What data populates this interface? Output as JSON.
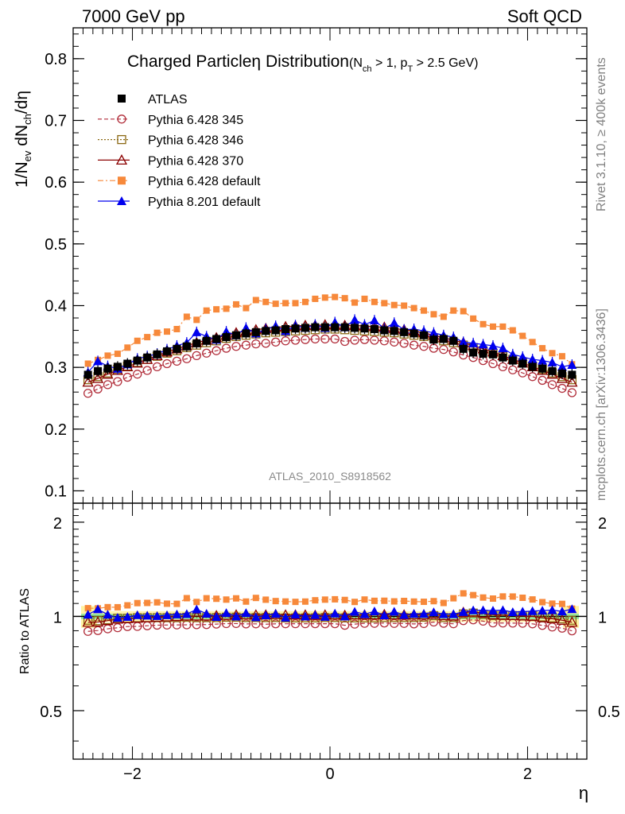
{
  "header": {
    "energy_label": "7000 GeV pp",
    "process_label": "Soft QCD"
  },
  "side_labels": {
    "rivet": "Rivet 3.1.10, ≥ 400k events",
    "mcplots": "mcplots.cern.ch [arXiv:1306.3436]"
  },
  "chart_data": [
    {
      "type": "scatter",
      "panel": "main",
      "title_main": "Charged Particle",
      "title_eta": "η",
      "title_rest": " Distribution",
      "title_cut": {
        "open": "(N",
        "sub1": "ch",
        "mid": " > 1, p",
        "sub2": "T",
        "close": " > 2.5 GeV)"
      },
      "ylabel": {
        "a": "1/N",
        "sub1": "ev",
        "b": " dN",
        "sub2": "ch",
        "c": "/dη"
      },
      "xlabel": "η",
      "xlim": [
        -2.6,
        2.6
      ],
      "ylim": [
        0.08,
        0.85
      ],
      "yticks": [
        {
          "v": 0.1,
          "label": "0.1"
        },
        {
          "v": 0.2,
          "label": "0.2"
        },
        {
          "v": 0.3,
          "label": "0.3"
        },
        {
          "v": 0.4,
          "label": "0.4"
        },
        {
          "v": 0.5,
          "label": "0.5"
        },
        {
          "v": 0.6,
          "label": "0.6"
        },
        {
          "v": 0.7,
          "label": "0.7"
        },
        {
          "v": 0.8,
          "label": "0.8"
        }
      ],
      "watermark": "ATLAS_2010_S8918562",
      "x": [
        -2.45,
        -2.35,
        -2.25,
        -2.15,
        -2.05,
        -1.95,
        -1.85,
        -1.75,
        -1.65,
        -1.55,
        -1.45,
        -1.35,
        -1.25,
        -1.15,
        -1.05,
        -0.95,
        -0.85,
        -0.75,
        -0.65,
        -0.55,
        -0.45,
        -0.35,
        -0.25,
        -0.15,
        -0.05,
        0.05,
        0.15,
        0.25,
        0.35,
        0.45,
        0.55,
        0.65,
        0.75,
        0.85,
        0.95,
        1.05,
        1.15,
        1.25,
        1.35,
        1.45,
        1.55,
        1.65,
        1.75,
        1.85,
        1.95,
        2.05,
        2.15,
        2.25,
        2.35,
        2.45
      ],
      "series": [
        {
          "name": "ATLAS",
          "key": "atlas",
          "color": "#000000",
          "marker": "square-filled",
          "line": "none",
          "values": [
            0.288,
            0.294,
            0.298,
            0.301,
            0.306,
            0.311,
            0.316,
            0.321,
            0.326,
            0.33,
            0.334,
            0.339,
            0.343,
            0.346,
            0.349,
            0.352,
            0.355,
            0.357,
            0.359,
            0.36,
            0.362,
            0.363,
            0.364,
            0.365,
            0.365,
            0.365,
            0.365,
            0.364,
            0.363,
            0.362,
            0.36,
            0.359,
            0.357,
            0.355,
            0.352,
            0.345,
            0.346,
            0.343,
            0.33,
            0.324,
            0.322,
            0.321,
            0.316,
            0.311,
            0.306,
            0.301,
            0.298,
            0.294,
            0.29,
            0.288
          ]
        },
        {
          "name": "Pythia 6.428 345",
          "key": "p345",
          "color": "#b22f3c",
          "marker": "circle-open",
          "line": "dashed",
          "values": [
            0.258,
            0.265,
            0.272,
            0.277,
            0.284,
            0.289,
            0.295,
            0.301,
            0.306,
            0.31,
            0.314,
            0.319,
            0.323,
            0.327,
            0.331,
            0.334,
            0.336,
            0.338,
            0.339,
            0.341,
            0.343,
            0.344,
            0.345,
            0.346,
            0.346,
            0.346,
            0.342,
            0.344,
            0.345,
            0.344,
            0.343,
            0.341,
            0.339,
            0.336,
            0.334,
            0.331,
            0.329,
            0.325,
            0.32,
            0.316,
            0.311,
            0.306,
            0.301,
            0.296,
            0.291,
            0.285,
            0.279,
            0.272,
            0.266,
            0.259
          ]
        },
        {
          "name": "Pythia 6.428 346",
          "key": "p346",
          "color": "#8b6914",
          "marker": "square-open",
          "line": "dotted",
          "values": [
            0.28,
            0.285,
            0.291,
            0.297,
            0.302,
            0.308,
            0.313,
            0.318,
            0.323,
            0.327,
            0.332,
            0.336,
            0.34,
            0.343,
            0.347,
            0.35,
            0.352,
            0.354,
            0.356,
            0.357,
            0.358,
            0.359,
            0.36,
            0.361,
            0.362,
            0.362,
            0.361,
            0.36,
            0.359,
            0.358,
            0.357,
            0.356,
            0.354,
            0.352,
            0.35,
            0.347,
            0.343,
            0.34,
            0.336,
            0.332,
            0.327,
            0.323,
            0.318,
            0.313,
            0.308,
            0.302,
            0.297,
            0.291,
            0.285,
            0.28
          ]
        },
        {
          "name": "Pythia 6.428 370",
          "key": "p370",
          "color": "#8b0000",
          "marker": "triangle-open",
          "line": "solid",
          "values": [
            0.276,
            0.282,
            0.289,
            0.295,
            0.301,
            0.307,
            0.313,
            0.319,
            0.325,
            0.33,
            0.335,
            0.34,
            0.344,
            0.348,
            0.352,
            0.356,
            0.359,
            0.361,
            0.363,
            0.365,
            0.366,
            0.367,
            0.368,
            0.368,
            0.369,
            0.369,
            0.368,
            0.368,
            0.367,
            0.366,
            0.365,
            0.363,
            0.361,
            0.359,
            0.356,
            0.352,
            0.348,
            0.344,
            0.34,
            0.335,
            0.33,
            0.325,
            0.319,
            0.313,
            0.307,
            0.301,
            0.295,
            0.289,
            0.282,
            0.276
          ]
        },
        {
          "name": "Pythia 6.428 default",
          "key": "pdef6",
          "color": "#f7893b",
          "marker": "square-filled",
          "line": "dashdot",
          "values": [
            0.306,
            0.312,
            0.319,
            0.322,
            0.332,
            0.343,
            0.349,
            0.356,
            0.358,
            0.362,
            0.382,
            0.377,
            0.392,
            0.394,
            0.395,
            0.402,
            0.396,
            0.409,
            0.406,
            0.403,
            0.404,
            0.404,
            0.406,
            0.411,
            0.413,
            0.414,
            0.412,
            0.405,
            0.411,
            0.406,
            0.404,
            0.401,
            0.4,
            0.396,
            0.392,
            0.386,
            0.382,
            0.392,
            0.391,
            0.379,
            0.37,
            0.366,
            0.366,
            0.36,
            0.351,
            0.341,
            0.331,
            0.323,
            0.318,
            0.305
          ]
        },
        {
          "name": "Pythia 8.201 default",
          "key": "pdef8",
          "color": "#0000ee",
          "marker": "triangle-filled",
          "line": "solid",
          "values": [
            0.292,
            0.31,
            0.302,
            0.298,
            0.305,
            0.314,
            0.318,
            0.322,
            0.329,
            0.335,
            0.34,
            0.357,
            0.35,
            0.345,
            0.358,
            0.352,
            0.364,
            0.355,
            0.362,
            0.367,
            0.359,
            0.368,
            0.364,
            0.369,
            0.364,
            0.373,
            0.365,
            0.377,
            0.369,
            0.376,
            0.363,
            0.372,
            0.361,
            0.362,
            0.359,
            0.356,
            0.352,
            0.349,
            0.341,
            0.339,
            0.337,
            0.335,
            0.331,
            0.321,
            0.317,
            0.313,
            0.311,
            0.308,
            0.301,
            0.304
          ]
        }
      ]
    },
    {
      "type": "scatter",
      "panel": "ratio",
      "ylabel": "Ratio to ATLAS",
      "xlim": [
        -2.6,
        2.6
      ],
      "ylim": [
        0.35,
        2.3
      ],
      "yticks": [
        {
          "v": 0.5,
          "label": "0.5"
        },
        {
          "v": 1,
          "label": "1"
        },
        {
          "v": 2,
          "label": "2"
        }
      ],
      "xticks": [
        {
          "v": -2,
          "label": "−2"
        },
        {
          "v": 0,
          "label": "0"
        },
        {
          "v": 2,
          "label": "2"
        }
      ],
      "reference": 1.0,
      "band_inner": 0.02,
      "band_outer": 0.04,
      "band_outer_edge": 0.08
    }
  ]
}
